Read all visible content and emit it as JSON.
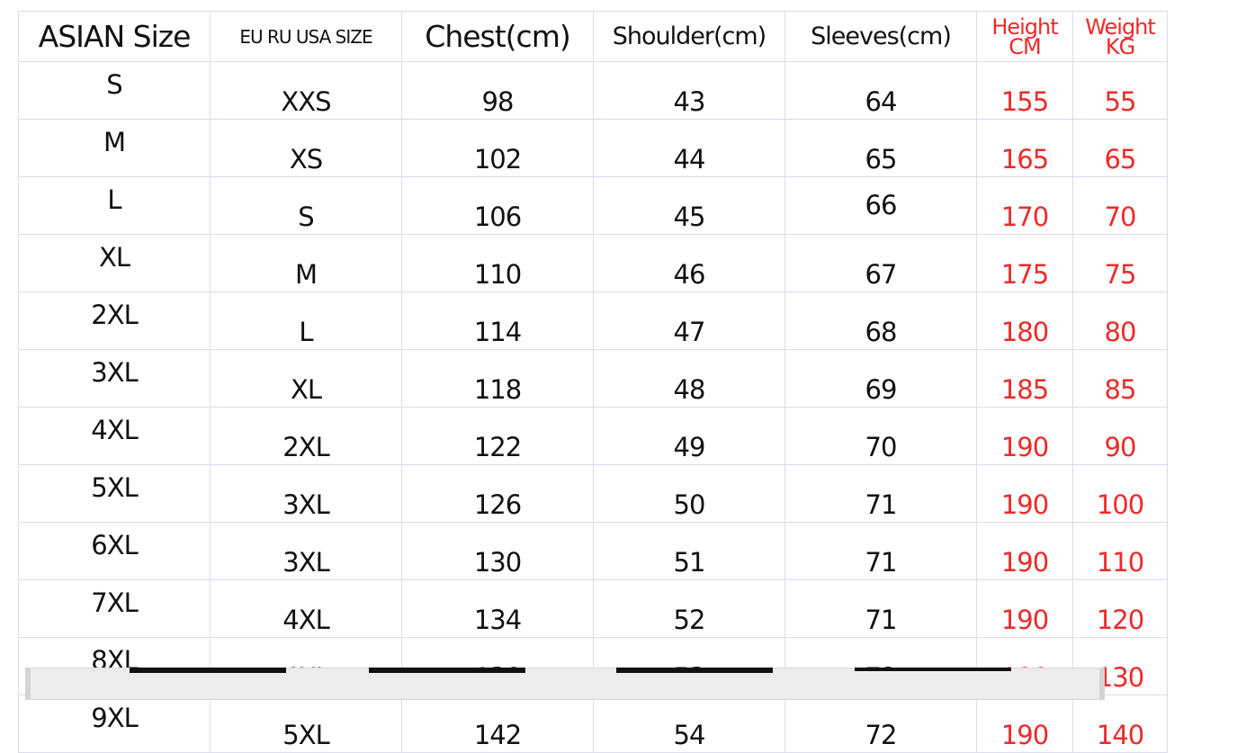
{
  "table": {
    "headers": [
      "ASIAN Size",
      "EU RU USA SIZE",
      "Chest(cm)",
      "Shoulder(cm)",
      "Sleeves(cm)",
      "Height CM",
      "Weight KG"
    ],
    "rows": [
      [
        "S",
        "XXS",
        "98",
        "43",
        "64",
        "155",
        "55"
      ],
      [
        "M",
        "XS",
        "102",
        "44",
        "65",
        "165",
        "65"
      ],
      [
        "L",
        "S",
        "106",
        "45",
        "66",
        "170",
        "70"
      ],
      [
        "XL",
        "M",
        "110",
        "46",
        "67",
        "175",
        "75"
      ],
      [
        "2XL",
        "L",
        "114",
        "47",
        "68",
        "180",
        "80"
      ],
      [
        "3XL",
        "XL",
        "118",
        "48",
        "69",
        "185",
        "85"
      ],
      [
        "4XL",
        "2XL",
        "122",
        "49",
        "70",
        "190",
        "90"
      ],
      [
        "5XL",
        "3XL",
        "126",
        "50",
        "71",
        "190",
        "100"
      ],
      [
        "6XL",
        "3XL",
        "130",
        "51",
        "71",
        "190",
        "110"
      ],
      [
        "7XL",
        "4XL",
        "134",
        "52",
        "71",
        "190",
        "120"
      ],
      [
        "8XL",
        "4XL",
        "138",
        "53",
        "72",
        "190",
        "130"
      ],
      [
        "9XL",
        "5XL",
        "142",
        "54",
        "72",
        "190",
        "140"
      ]
    ]
  },
  "colors": {
    "text": "#111111",
    "accent_red": "#ee2a2a",
    "grid": "#dcdcec"
  }
}
